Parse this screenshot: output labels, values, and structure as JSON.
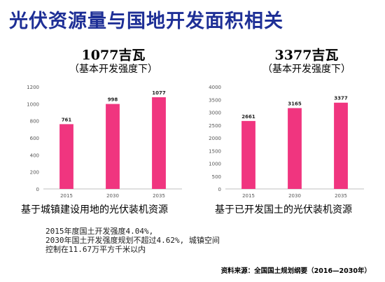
{
  "title": "光伏资源量与国地开发面积相关",
  "charts": [
    {
      "headline": "1077吉瓦",
      "subline": "（基本开发强度下）",
      "caption": "基于城镇建设用地的光伏装机资源"
    },
    {
      "headline": "3377吉瓦",
      "subline": "（基本开发强度下）",
      "caption": "基于已开发国土的光伏装机资源"
    }
  ],
  "notes": [
    "2015年度国土开发强度4.04%,",
    "2030年国土开发强度规划不超过4.62%, 城镇空间",
    "控制在11.67万平方千米以内"
  ],
  "source": "资料来源：全国国土规划纲要（2016—2030年）",
  "colors": {
    "title": "#1e2f96",
    "bar": "#f0357f",
    "axis": "#bfbfbf"
  },
  "chart_data": [
    {
      "type": "bar",
      "categories": [
        "2015",
        "2030",
        "2035"
      ],
      "values": [
        761,
        998,
        1077
      ],
      "data_labels": [
        "761",
        "998",
        "1077"
      ],
      "yticks": [
        "0",
        "200",
        "400",
        "600",
        "800",
        "1000",
        "1200"
      ],
      "ylim": [
        0,
        1200
      ],
      "grid": false
    },
    {
      "type": "bar",
      "categories": [
        "2015",
        "2030",
        "2035"
      ],
      "values": [
        2661,
        3165,
        3377
      ],
      "data_labels": [
        "2661",
        "3165",
        "3377"
      ],
      "yticks": [
        "0",
        "500",
        "1000",
        "1500",
        "2000",
        "2500",
        "3000",
        "3500",
        "4000"
      ],
      "ylim": [
        0,
        4000
      ],
      "grid": false
    }
  ]
}
